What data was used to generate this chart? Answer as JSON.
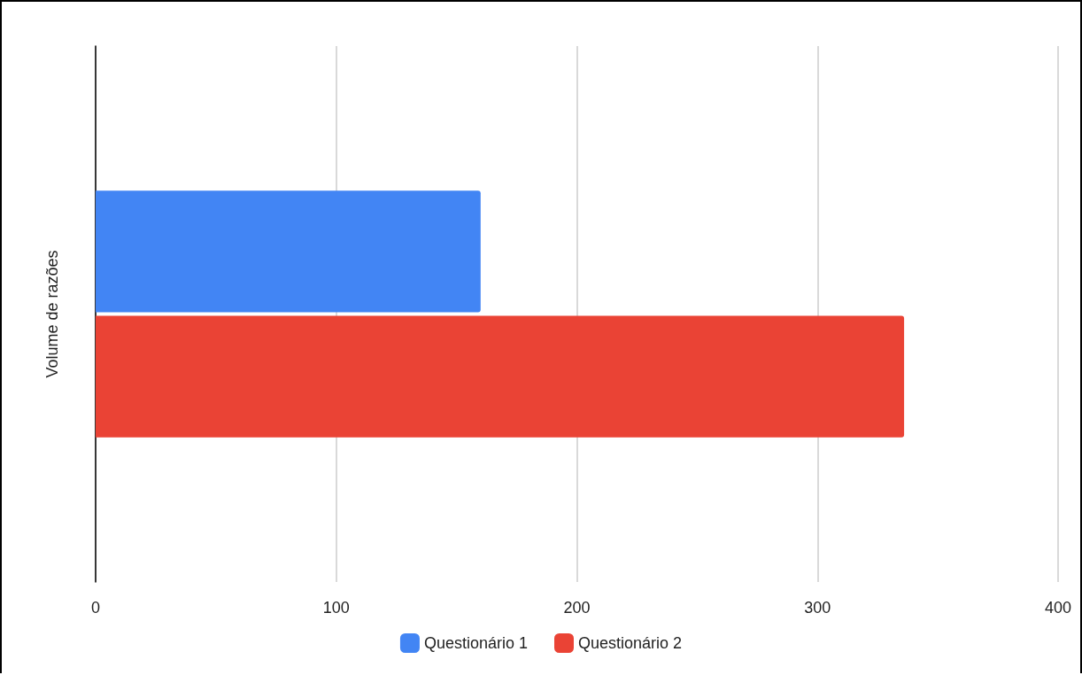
{
  "chart_data": {
    "type": "bar",
    "orientation": "horizontal",
    "ylabel": "Volume de razões",
    "categories": [
      null
    ],
    "series": [
      {
        "name": "Questionário 1",
        "color": "#4285f4",
        "values": [
          160
        ]
      },
      {
        "name": "Questionário 2",
        "color": "#ea4335",
        "values": [
          336
        ]
      }
    ],
    "xlim": [
      0,
      400
    ],
    "xticks": [
      0,
      100,
      200,
      300,
      400
    ],
    "grid": "x",
    "legend": "bottom"
  }
}
